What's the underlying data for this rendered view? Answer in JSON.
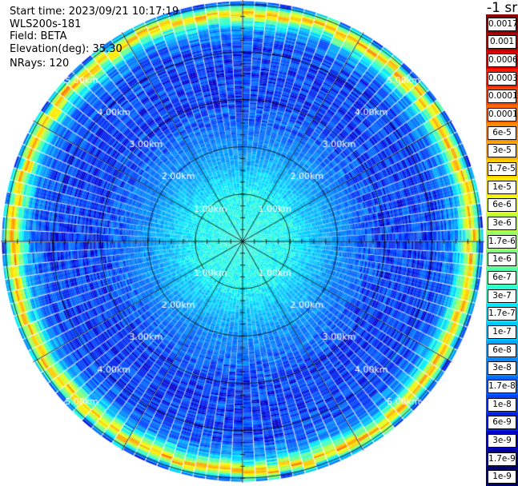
{
  "info": {
    "start_time": "Start time: 2023/09/21 10:17:19",
    "instrument": "WLS200s-181",
    "field": "Field: BETA",
    "elevation": "Elevation(deg): 35.30",
    "nrays": "NRays: 120"
  },
  "colorbar": {
    "title": "-1 sr",
    "labels": [
      "0.0017",
      "0.001",
      "0.0006",
      "0.0003",
      "0.00017",
      "0.0001",
      "6e-5",
      "3e-5",
      "1.7e-5",
      "1e-5",
      "6e-6",
      "3e-6",
      "1.7e-6",
      "1e-6",
      "6e-7",
      "3e-7",
      "1.7e-7",
      "1e-7",
      "6e-8",
      "3e-8",
      "1.7e-8",
      "1e-8",
      "6e-9",
      "3e-9",
      "1.7e-9",
      "1e-9"
    ],
    "colors": [
      "#8b0000",
      "#b50000",
      "#d80000",
      "#ff1a00",
      "#ff4500",
      "#ff6a00",
      "#ff8c00",
      "#ffab00",
      "#ffcc00",
      "#ffea00",
      "#e6ff1a",
      "#c0ff40",
      "#9bff66",
      "#73ff8c",
      "#4dffb0",
      "#28ffd8",
      "#00e8ff",
      "#00c8ff",
      "#00a8ff",
      "#0088ff",
      "#0066ff",
      "#0044ff",
      "#0022ee",
      "#0000cc",
      "#00009a",
      "#000070"
    ]
  },
  "chart_data": {
    "type": "ppi",
    "field": "BETA",
    "units": "sr-1",
    "nrays": 120,
    "range_ring_labels": [
      "1.00km",
      "2.00km",
      "3.00km",
      "4.00km",
      "5.00km"
    ],
    "range_rings_km": [
      1,
      2,
      3,
      4,
      5
    ],
    "max_range_km": 5.1,
    "spoke_interval_deg": 30,
    "profile_km": [
      0.0,
      1.0,
      2.0,
      3.0,
      3.8,
      4.2,
      4.5,
      4.7,
      4.85,
      5.1
    ],
    "profile_beta": [
      3e-07,
      2.5e-07,
      4e-08,
      1e-08,
      1e-08,
      1.2e-08,
      4e-08,
      6e-07,
      3e-05,
      1e-08
    ],
    "legend_placement": "right"
  }
}
